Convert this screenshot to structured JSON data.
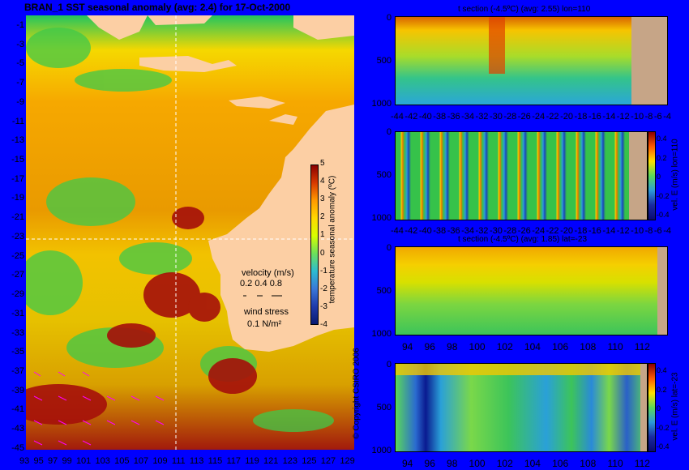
{
  "main": {
    "title": "BRAN_1  SST seasonal anomaly (avg: 2.4) for 17-Oct-2000",
    "x_ticks": [
      "93",
      "95",
      "97",
      "99",
      "101",
      "103",
      "105",
      "107",
      "109",
      "111",
      "113",
      "115",
      "117",
      "119",
      "121",
      "123",
      "125",
      "127",
      "129"
    ],
    "y_ticks": [
      "-1",
      "-3",
      "-5",
      "-7",
      "-9",
      "-11",
      "-13",
      "-15",
      "-17",
      "-19",
      "-21",
      "-23",
      "-25",
      "-27",
      "-29",
      "-31",
      "-33",
      "-35",
      "-37",
      "-39",
      "-41",
      "-43",
      "-45"
    ],
    "colorbar_label": "temperature seasonal anomaly (ºC)",
    "colorbar_ticks": [
      "5",
      "4",
      "3",
      "2",
      "1",
      "0",
      "-1",
      "-2",
      "-3",
      "-4"
    ],
    "velocity_label": "velocity (m/s)",
    "velocity_scale": "0.2 0.4 0.8",
    "wind_label": "wind stress",
    "wind_scale": "0.1 N/m²",
    "copyright": "© Copyright CSIRO 2006"
  },
  "panels": [
    {
      "title": "t section (-4.5ºC) (avg: 2.55) lon=110",
      "x_ticks": [
        "-44",
        "-42",
        "-40",
        "-38",
        "-36",
        "-34",
        "-32",
        "-30",
        "-28",
        "-26",
        "-24",
        "-22",
        "-20",
        "-18",
        "-16",
        "-14",
        "-12",
        "-10",
        "-8",
        "-6",
        "-4"
      ],
      "y_ticks": [
        "0",
        "500",
        "1000"
      ]
    },
    {
      "title": "",
      "side_label": "vel. E (m/s) lon=110",
      "cb_ticks": [
        "0.4",
        "0.2",
        "0",
        "-0.2",
        "-0.4"
      ],
      "x_ticks": [
        "-44",
        "-42",
        "-40",
        "-38",
        "-36",
        "-34",
        "-32",
        "-30",
        "-28",
        "-26",
        "-24",
        "-22",
        "-20",
        "-18",
        "-16",
        "-14",
        "-12",
        "-10",
        "-8",
        "-6",
        "-4"
      ],
      "y_ticks": [
        "0",
        "500",
        "1000"
      ]
    },
    {
      "title": "t section (-4.5ºC) (avg: 1.85) lat=-23",
      "x_ticks": [
        "94",
        "96",
        "98",
        "100",
        "102",
        "104",
        "106",
        "108",
        "110",
        "112"
      ],
      "y_ticks": [
        "0",
        "500",
        "1000"
      ]
    },
    {
      "title": "",
      "side_label": "vel. E (m/s) lat=-23",
      "cb_ticks": [
        "0.4",
        "0.2",
        "0",
        "-0.2",
        "-0.4"
      ],
      "x_ticks": [
        "94",
        "96",
        "98",
        "100",
        "102",
        "104",
        "106",
        "108",
        "110",
        "112"
      ],
      "y_ticks": [
        "0",
        "500",
        "1000"
      ]
    }
  ],
  "colors": {
    "background": "#0000ff",
    "land": "#fccfa4",
    "section_land": "#c6a587",
    "wind_arrows": "#ff00ff"
  },
  "chart_data": [
    {
      "type": "heatmap",
      "title": "BRAN_1  SST seasonal anomaly (avg: 2.4) for 17-Oct-2000",
      "xlim": [
        93,
        130
      ],
      "ylim": [
        -45,
        0
      ],
      "clim": [
        -4,
        5
      ],
      "colorbar": "temperature seasonal anomaly (ºC)",
      "section_lines": {
        "lon": 110,
        "lat": -23
      }
    },
    {
      "type": "heatmap",
      "title": "t section (-4.5ºC) (avg: 2.55) lon=110",
      "xlim": [
        -45,
        -3
      ],
      "ylim": [
        1050,
        0
      ]
    },
    {
      "type": "heatmap",
      "title": "",
      "colorbar": "vel. E (m/s) lon=110",
      "clim": [
        -0.5,
        0.5
      ],
      "xlim": [
        -45,
        -3
      ],
      "ylim": [
        1050,
        0
      ]
    },
    {
      "type": "heatmap",
      "title": "t section (-4.5ºC) (avg: 1.85) lat=-23",
      "xlim": [
        93,
        114
      ],
      "ylim": [
        1050,
        0
      ]
    },
    {
      "type": "heatmap",
      "title": "",
      "colorbar": "vel. E (m/s) lat=-23",
      "clim": [
        -0.5,
        0.5
      ],
      "xlim": [
        93,
        114
      ],
      "ylim": [
        1050,
        0
      ]
    }
  ]
}
